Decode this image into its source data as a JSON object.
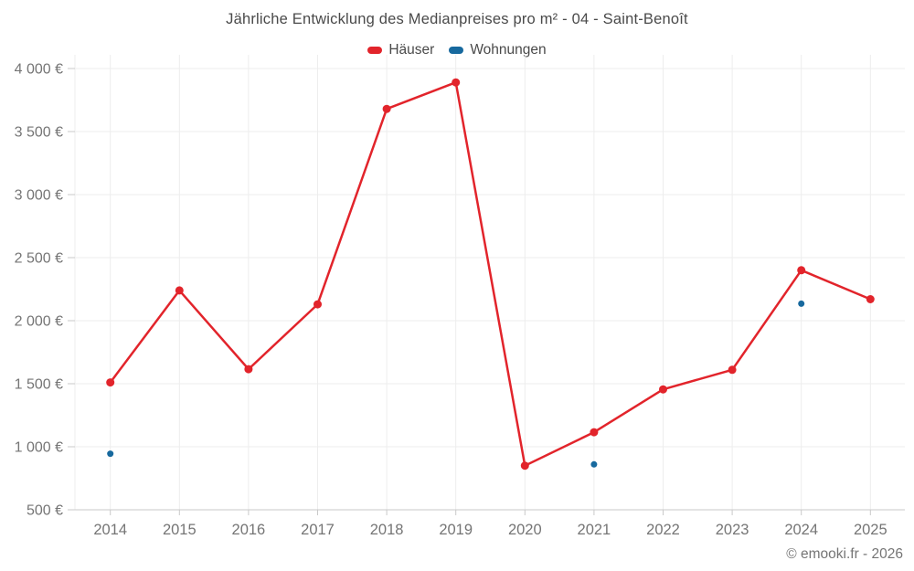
{
  "header": {
    "title": "Jährliche Entwicklung des Medianpreises pro m² - 04 - Saint-Benoît"
  },
  "chart_data": {
    "type": "line",
    "title": "Jährliche Entwicklung des Medianpreises pro m² - 04 - Saint-Benoît",
    "categories": [
      "2014",
      "2015",
      "2016",
      "2017",
      "2018",
      "2019",
      "2020",
      "2021",
      "2022",
      "2023",
      "2024",
      "2025"
    ],
    "series": [
      {
        "name": "Häuser",
        "color": "#e2242b",
        "type": "line",
        "marker_radius": 4.5,
        "values": [
          1510,
          2240,
          1615,
          2130,
          3680,
          3890,
          850,
          1115,
          1455,
          1610,
          2400,
          2170
        ]
      },
      {
        "name": "Wohnungen",
        "color": "#17699e",
        "type": "scatter",
        "marker_radius": 3.5,
        "values": [
          945,
          null,
          null,
          null,
          null,
          null,
          null,
          860,
          null,
          null,
          2135,
          null
        ]
      }
    ],
    "xlabel": "",
    "ylabel": "",
    "ylim": [
      500,
      4000
    ],
    "ytick_step": 500,
    "ytick_suffix": " €",
    "grid": true,
    "legend_position": "top",
    "axis_text_color": "#757575",
    "grid_color": "#ededed",
    "axis_line_color": "#c9c9c9"
  },
  "footer": {
    "copyright": "© emooki.fr - 2026"
  }
}
